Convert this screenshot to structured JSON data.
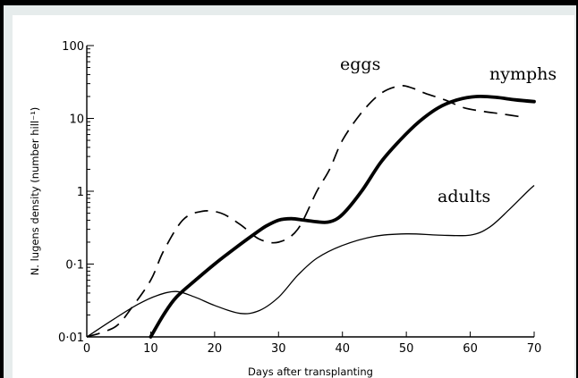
{
  "chart_data": {
    "type": "line",
    "xlabel": "Days after transplanting",
    "ylabel": "N. lugens density (number hill⁻¹)",
    "xlim": [
      0,
      70
    ],
    "ylim": [
      0.01,
      100
    ],
    "yscale": "log",
    "x_ticks": [
      {
        "value": 0,
        "label": "0"
      },
      {
        "value": 10,
        "label": "10"
      },
      {
        "value": 20,
        "label": "20"
      },
      {
        "value": 30,
        "label": "30"
      },
      {
        "value": 40,
        "label": "40"
      },
      {
        "value": 50,
        "label": "50"
      },
      {
        "value": 60,
        "label": "60"
      },
      {
        "value": 70,
        "label": "70"
      }
    ],
    "y_ticks": [
      {
        "value": 0.01,
        "label": "0·01"
      },
      {
        "value": 0.1,
        "label": "0·1"
      },
      {
        "value": 1,
        "label": "1"
      },
      {
        "value": 10,
        "label": "10"
      },
      {
        "value": 100,
        "label": "100"
      }
    ],
    "grid": false,
    "legend": "inline labels",
    "series": [
      {
        "name": "eggs",
        "style": "dashed",
        "x": [
          0,
          3,
          5,
          7,
          10,
          12,
          15,
          18,
          21,
          24,
          27,
          30,
          33,
          36,
          38,
          40,
          43,
          46,
          49,
          51,
          53,
          56,
          59,
          62,
          65,
          68
        ],
        "y": [
          0.01,
          0.012,
          0.015,
          0.025,
          0.06,
          0.15,
          0.4,
          0.53,
          0.5,
          0.35,
          0.22,
          0.2,
          0.3,
          1.0,
          2.0,
          5.0,
          12.0,
          22.0,
          28.0,
          26.0,
          22.0,
          18.0,
          14.0,
          12.5,
          11.5,
          10.5
        ]
      },
      {
        "name": "nymphs",
        "style": "thick",
        "x": [
          10,
          12,
          14,
          17,
          20,
          23,
          26,
          28,
          30,
          32,
          34,
          36,
          38,
          40,
          43,
          46,
          49,
          52,
          55,
          58,
          61,
          64,
          67,
          70
        ],
        "y": [
          0.01,
          0.02,
          0.035,
          0.06,
          0.1,
          0.16,
          0.25,
          0.33,
          0.4,
          0.42,
          0.4,
          0.38,
          0.38,
          0.48,
          1.0,
          2.5,
          5.0,
          9.0,
          14.0,
          18.0,
          20.0,
          19.5,
          18.0,
          17.0
        ]
      },
      {
        "name": "adults",
        "style": "thin",
        "x": [
          0,
          4,
          8,
          11,
          14,
          17,
          20,
          24,
          27,
          30,
          33,
          36,
          40,
          45,
          50,
          55,
          60,
          63,
          66,
          69,
          70
        ],
        "y": [
          0.01,
          0.017,
          0.028,
          0.037,
          0.042,
          0.035,
          0.027,
          0.021,
          0.023,
          0.035,
          0.07,
          0.12,
          0.18,
          0.24,
          0.26,
          0.25,
          0.25,
          0.32,
          0.55,
          1.0,
          1.2
        ]
      }
    ]
  }
}
